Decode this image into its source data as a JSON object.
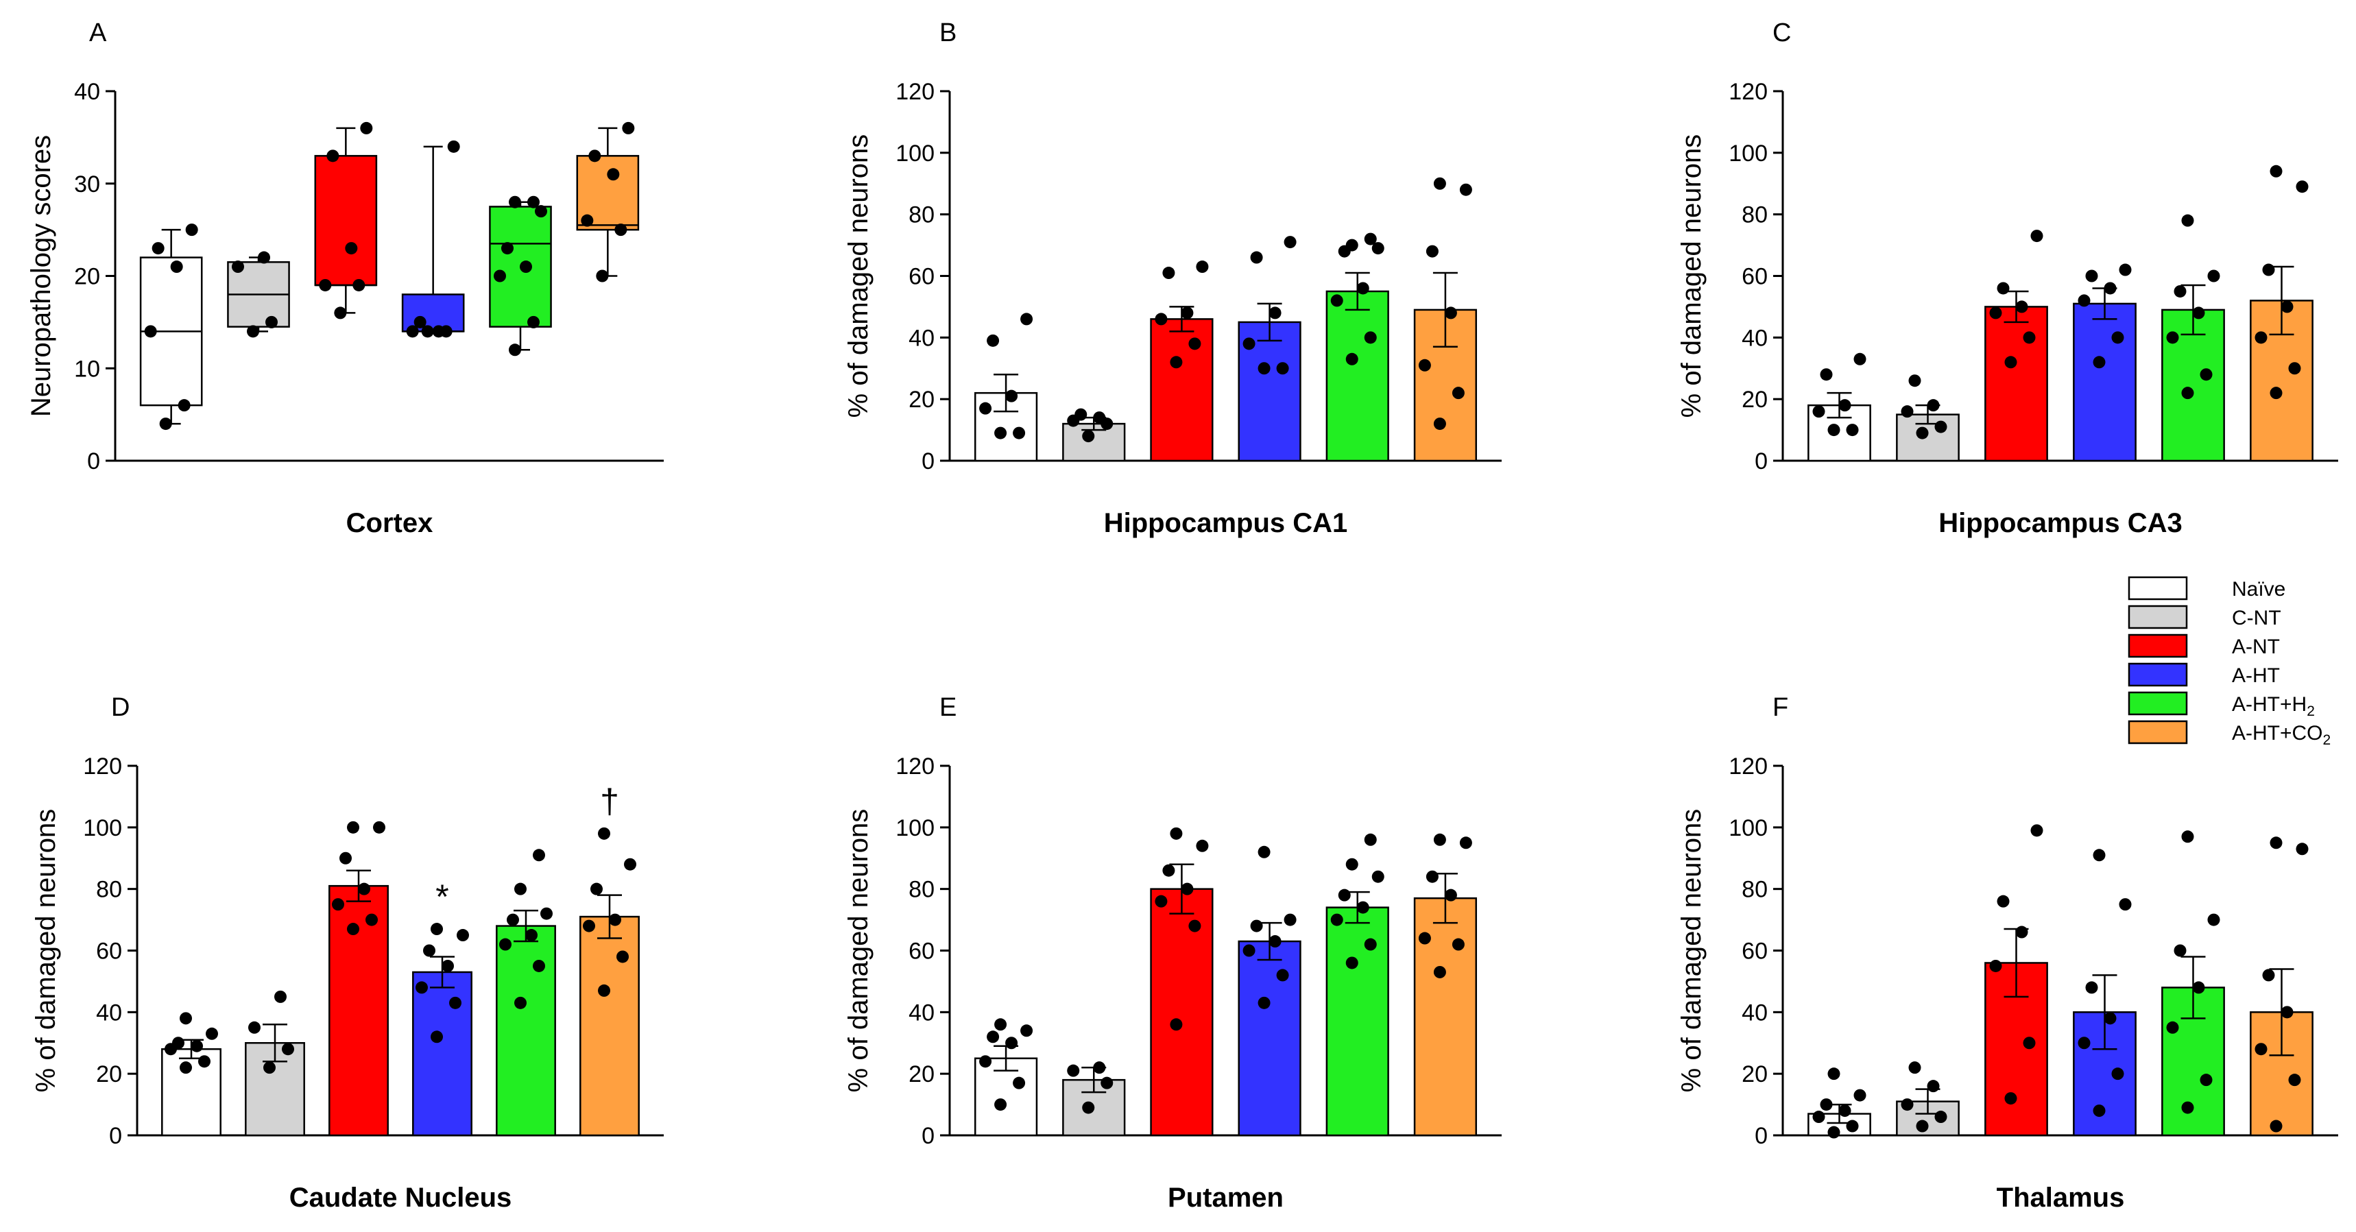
{
  "colors": {
    "Naïve": "#ffffff",
    "C-NT": "#d3d3d3",
    "A-NT": "#ff0000",
    "A-HT": "#3333ff",
    "A-HT+H2": "#22ee22",
    "A-HT+CO2": "#ffa040"
  },
  "legend": {
    "entries": [
      {
        "group": "Naïve",
        "label": "Naïve",
        "sub": ""
      },
      {
        "group": "C-NT",
        "label": "C-NT",
        "sub": ""
      },
      {
        "group": "A-NT",
        "label": "A-NT",
        "sub": ""
      },
      {
        "group": "A-HT",
        "label": "A-HT",
        "sub": ""
      },
      {
        "group": "A-HT+H2",
        "label": "A-HT+H",
        "sub": "2"
      },
      {
        "group": "A-HT+CO2",
        "label": "A-HT+CO",
        "sub": "2"
      }
    ]
  },
  "chart_data": [
    {
      "panel": "A",
      "type": "box",
      "xlabel": "Cortex",
      "ylabel": "Neuropathology scores",
      "ylim": [
        0,
        40
      ],
      "yticks": [
        0,
        10,
        20,
        30,
        40
      ],
      "groups": [
        "Naïve",
        "C-NT",
        "A-NT",
        "A-HT",
        "A-HT+H2",
        "A-HT+CO2"
      ],
      "boxes": [
        {
          "min": 4,
          "q1": 6,
          "median": 14,
          "q3": 22,
          "max": 25
        },
        {
          "min": 14,
          "q1": 14.5,
          "median": 18,
          "q3": 21.5,
          "max": 22
        },
        {
          "min": 16,
          "q1": 19,
          "median": 19,
          "q3": 33,
          "max": 36
        },
        {
          "min": 14,
          "q1": 14,
          "median": 14,
          "q3": 18,
          "max": 34
        },
        {
          "min": 12,
          "q1": 14.5,
          "median": 23.5,
          "q3": 27.5,
          "max": 28
        },
        {
          "min": 20,
          "q1": 25,
          "median": 25.5,
          "q3": 33,
          "max": 36
        }
      ],
      "points": [
        [
          4,
          6,
          14,
          21,
          23,
          25
        ],
        [
          14,
          15,
          21,
          22
        ],
        [
          16,
          19,
          19,
          23,
          33,
          36
        ],
        [
          14,
          14,
          14,
          14,
          15,
          34
        ],
        [
          12,
          15,
          20,
          21,
          23,
          27,
          28,
          28
        ],
        [
          20,
          25,
          26,
          31,
          33,
          36
        ]
      ],
      "annotations": []
    },
    {
      "panel": "B",
      "type": "bar",
      "xlabel": "Hippocampus CA1",
      "ylabel": "% of damaged neurons",
      "ylim": [
        0,
        120
      ],
      "yticks": [
        0,
        20,
        40,
        60,
        80,
        100,
        120
      ],
      "groups": [
        "Naïve",
        "C-NT",
        "A-NT",
        "A-HT",
        "A-HT+H2",
        "A-HT+CO2"
      ],
      "values": [
        22,
        12,
        46,
        45,
        55,
        49
      ],
      "errors": [
        6,
        2,
        4,
        6,
        6,
        12
      ],
      "points": [
        [
          9,
          9,
          17,
          21,
          39,
          46
        ],
        [
          8,
          12,
          13,
          14,
          15
        ],
        [
          32,
          38,
          46,
          48,
          61,
          63
        ],
        [
          30,
          30,
          38,
          48,
          66,
          71
        ],
        [
          33,
          40,
          52,
          56,
          68,
          69,
          70,
          72
        ],
        [
          12,
          22,
          31,
          48,
          68,
          88,
          90
        ]
      ],
      "annotations": []
    },
    {
      "panel": "C",
      "type": "bar",
      "xlabel": "Hippocampus CA3",
      "ylabel": "% of damaged neurons",
      "ylim": [
        0,
        120
      ],
      "yticks": [
        0,
        20,
        40,
        60,
        80,
        100,
        120
      ],
      "groups": [
        "Naïve",
        "C-NT",
        "A-NT",
        "A-HT",
        "A-HT+H2",
        "A-HT+CO2"
      ],
      "values": [
        18,
        15,
        50,
        51,
        49,
        52
      ],
      "errors": [
        4,
        3,
        5,
        5,
        8,
        11
      ],
      "points": [
        [
          10,
          10,
          16,
          18,
          28,
          33
        ],
        [
          9,
          11,
          16,
          18,
          26
        ],
        [
          32,
          40,
          48,
          50,
          56,
          73
        ],
        [
          32,
          40,
          52,
          56,
          60,
          62
        ],
        [
          22,
          28,
          40,
          48,
          55,
          60,
          78
        ],
        [
          22,
          30,
          40,
          50,
          62,
          89,
          94
        ]
      ],
      "annotations": []
    },
    {
      "panel": "D",
      "type": "bar",
      "xlabel": "Caudate Nucleus",
      "ylabel": "% of damaged neurons",
      "ylim": [
        0,
        120
      ],
      "yticks": [
        0,
        20,
        40,
        60,
        80,
        100,
        120
      ],
      "groups": [
        "Naïve",
        "C-NT",
        "A-NT",
        "A-HT",
        "A-HT+H2",
        "A-HT+CO2"
      ],
      "values": [
        28,
        30,
        81,
        53,
        68,
        71
      ],
      "errors": [
        3,
        6,
        5,
        5,
        5,
        7
      ],
      "points": [
        [
          22,
          24,
          28,
          29,
          30,
          33,
          38
        ],
        [
          22,
          28,
          35,
          45
        ],
        [
          67,
          70,
          75,
          80,
          90,
          100,
          100
        ],
        [
          32,
          43,
          48,
          55,
          60,
          65,
          67
        ],
        [
          43,
          55,
          62,
          65,
          70,
          72,
          80,
          91
        ],
        [
          47,
          58,
          68,
          70,
          80,
          88,
          98
        ]
      ],
      "annotations": [
        {
          "group_index": 3,
          "text": "*"
        },
        {
          "group_index": 5,
          "text": "†"
        }
      ]
    },
    {
      "panel": "E",
      "type": "bar",
      "xlabel": "Putamen",
      "ylabel": "% of damaged neurons",
      "ylim": [
        0,
        120
      ],
      "yticks": [
        0,
        20,
        40,
        60,
        80,
        100,
        120
      ],
      "groups": [
        "Naïve",
        "C-NT",
        "A-NT",
        "A-HT",
        "A-HT+H2",
        "A-HT+CO2"
      ],
      "values": [
        25,
        18,
        80,
        63,
        74,
        77
      ],
      "errors": [
        4,
        4,
        8,
        6,
        5,
        8
      ],
      "points": [
        [
          10,
          17,
          24,
          30,
          32,
          34,
          36
        ],
        [
          9,
          17,
          21,
          22
        ],
        [
          36,
          68,
          76,
          80,
          86,
          94,
          98
        ],
        [
          43,
          52,
          60,
          63,
          68,
          70,
          92
        ],
        [
          56,
          62,
          70,
          74,
          78,
          84,
          88,
          96
        ],
        [
          53,
          62,
          64,
          78,
          84,
          95,
          96
        ]
      ],
      "annotations": []
    },
    {
      "panel": "F",
      "type": "bar",
      "xlabel": "Thalamus",
      "ylabel": "% of damaged neurons",
      "ylim": [
        0,
        120
      ],
      "yticks": [
        0,
        20,
        40,
        60,
        80,
        100,
        120
      ],
      "groups": [
        "Naïve",
        "C-NT",
        "A-NT",
        "A-HT",
        "A-HT+H2",
        "A-HT+CO2"
      ],
      "values": [
        7,
        11,
        56,
        40,
        48,
        40
      ],
      "errors": [
        3,
        4,
        11,
        12,
        10,
        14
      ],
      "points": [
        [
          1,
          3,
          6,
          8,
          10,
          13,
          20
        ],
        [
          3,
          6,
          10,
          16,
          22
        ],
        [
          12,
          30,
          55,
          66,
          76,
          99
        ],
        [
          8,
          20,
          30,
          38,
          48,
          75,
          91
        ],
        [
          9,
          18,
          35,
          48,
          60,
          70,
          97
        ],
        [
          3,
          18,
          28,
          40,
          52,
          93,
          95
        ]
      ],
      "annotations": []
    }
  ]
}
